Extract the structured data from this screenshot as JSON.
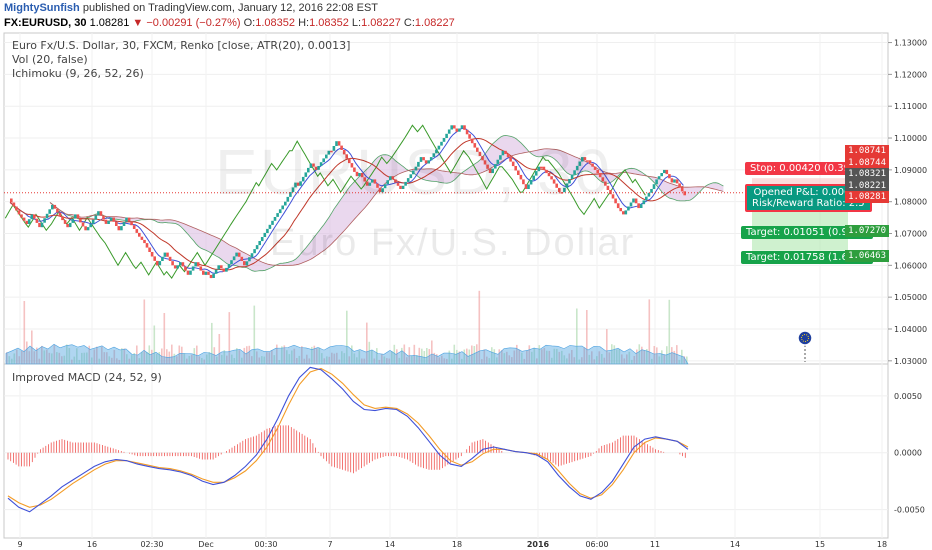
{
  "header": {
    "author": "MightySunfish",
    "published": "published on TradingView.com, January 12, 2016 22:08 EST"
  },
  "symbol_line": {
    "symbol": "FX:EURUSD, 30",
    "last": "1.08281",
    "change": "▼ −0.00291 (−0.27%)",
    "o_label": "O:",
    "o": "1.08352",
    "h_label": "H:",
    "h": "1.08352",
    "l_label": "L:",
    "l": "1.08227",
    "c_label": "C:",
    "c": "1.08227"
  },
  "legend": {
    "main": "Euro Fx/U.S. Dollar, 30, FXCM, Renko [close, ATR(20), 0.0013]",
    "vol": "Vol (20, false)",
    "ichimoku": "Ichimoku (9, 26, 52, 26)",
    "macd": "Improved MACD (24, 52, 9)"
  },
  "watermark": {
    "big": "EURUSD, 30",
    "small": "Euro Fx/U.S. Dollar"
  },
  "colors": {
    "up": "#26a69a",
    "down": "#ef5350",
    "stop": "#f23645",
    "target": "#089981",
    "macd": "#3f51d8",
    "signal": "#f39c27",
    "tenkan": "#3f51d8",
    "kijun": "#c0392b",
    "chikou": "#3a9a2b",
    "cloud": "#d9b8e0"
  },
  "trade": {
    "stop": "Stop: 0.00420 (0.39%)",
    "pl": "Opened P&L: 0.00094",
    "rr": "Risk/Reward Ratio: 2.5",
    "target1": "Target: 0.01051 (0.97%)",
    "target2": "Target: 0.01758 (1.62%)"
  },
  "price_tags": [
    {
      "text": "1.08741",
      "color": "#e53935"
    },
    {
      "text": "1.08744",
      "color": "#e53935"
    },
    {
      "text": "1.08321",
      "color": "#555555"
    },
    {
      "text": "1.08221",
      "color": "#555555"
    },
    {
      "text": "1.08281",
      "color": "#e53935"
    },
    {
      "text": "1.07270",
      "color": "#2e9e3e"
    },
    {
      "text": "1.06463",
      "color": "#2e9e3e"
    }
  ],
  "event_icon": "eu-flag-icon",
  "chart_data": {
    "type": "renko",
    "main_yticks": [
      "1.13000",
      "1.12000",
      "1.11000",
      "1.10000",
      "1.09000",
      "1.08000",
      "1.07000",
      "1.06000",
      "1.05000",
      "1.04000",
      "1.03000"
    ],
    "main_ylim": [
      1.029,
      1.133
    ],
    "brick_size": 0.0013,
    "renko_path": [
      1.081,
      1.076,
      1.075,
      1.073,
      1.076,
      1.072,
      1.079,
      1.073,
      1.072,
      1.076,
      1.071,
      1.073,
      1.077,
      1.073,
      1.075,
      1.071,
      1.075,
      1.069,
      1.067,
      1.06,
      1.064,
      1.06,
      1.059,
      1.061,
      1.057,
      1.061,
      1.057,
      1.058,
      1.056,
      1.06,
      1.058,
      1.064,
      1.06,
      1.074,
      1.08,
      1.083,
      1.086,
      1.085,
      1.092,
      1.09,
      1.096,
      1.096,
      1.099,
      1.088,
      1.089,
      1.085,
      1.087,
      1.083,
      1.088,
      1.086,
      1.084,
      1.085,
      1.091,
      1.094,
      1.092,
      1.094,
      1.1,
      1.104,
      1.102,
      1.104,
      1.097,
      1.089,
      1.096,
      1.094,
      1.087,
      1.084,
      1.091,
      1.091,
      1.089,
      1.087,
      1.083,
      1.083,
      1.094,
      1.093,
      1.093,
      1.092,
      1.091,
      1.089,
      1.081,
      1.078,
      1.076,
      1.081,
      1.078,
      1.084,
      1.087,
      1.089,
      1.09,
      1.086,
      1.087,
      1.082
    ],
    "macd_yticks": [
      "0.0050",
      "0.0000",
      "-0.0050"
    ],
    "macd_ylim": [
      -0.0075,
      0.0078
    ],
    "macd": [
      -0.004,
      -0.0048,
      -0.0052,
      -0.0045,
      -0.0038,
      -0.003,
      -0.0024,
      -0.0018,
      -0.0012,
      -0.0008,
      -0.0006,
      -0.0007,
      -0.001,
      -0.0012,
      -0.0014,
      -0.0015,
      -0.0017,
      -0.002,
      -0.0025,
      -0.0028,
      -0.0026,
      -0.002,
      -0.0012,
      -0.0002,
      0.0012,
      0.003,
      0.005,
      0.0066,
      0.0075,
      0.0073,
      0.0065,
      0.0056,
      0.0045,
      0.0038,
      0.0037,
      0.0039,
      0.0038,
      0.0032,
      0.0022,
      0.001,
      -0.0002,
      -0.001,
      -0.0012,
      -0.0005,
      0.0003,
      0.0005,
      0.0003,
      0.0001,
      0.0,
      -0.0002,
      -0.0008,
      -0.002,
      -0.003,
      -0.0038,
      -0.0041,
      -0.0035,
      -0.0025,
      -0.001,
      0.0005,
      0.0012,
      0.0014,
      0.0012,
      0.001,
      0.0003
    ],
    "signal": [
      -0.0038,
      -0.0044,
      -0.0048,
      -0.0046,
      -0.0041,
      -0.0034,
      -0.0027,
      -0.0021,
      -0.0015,
      -0.001,
      -0.0007,
      -0.0007,
      -0.0009,
      -0.0011,
      -0.0013,
      -0.0014,
      -0.0016,
      -0.0019,
      -0.0023,
      -0.0026,
      -0.0026,
      -0.0022,
      -0.0016,
      -0.0007,
      0.0005,
      0.0022,
      0.0042,
      0.006,
      0.0071,
      0.0074,
      0.0069,
      0.0061,
      0.0051,
      0.0042,
      0.0039,
      0.004,
      0.0039,
      0.0034,
      0.0026,
      0.0015,
      0.0003,
      -0.0007,
      -0.0011,
      -0.0008,
      -0.0001,
      0.0003,
      0.0003,
      0.0001,
      0.0,
      -0.0001,
      -0.0006,
      -0.0016,
      -0.0027,
      -0.0036,
      -0.004,
      -0.0037,
      -0.0028,
      -0.0015,
      0.0,
      0.0009,
      0.0013,
      0.0012,
      0.001,
      0.0005
    ],
    "x_ticks": [
      "9",
      "16",
      "02:30",
      "Dec",
      "00:30",
      "7",
      "14",
      "18",
      "2016",
      "06:00",
      "11",
      "14",
      "15",
      "18"
    ]
  }
}
